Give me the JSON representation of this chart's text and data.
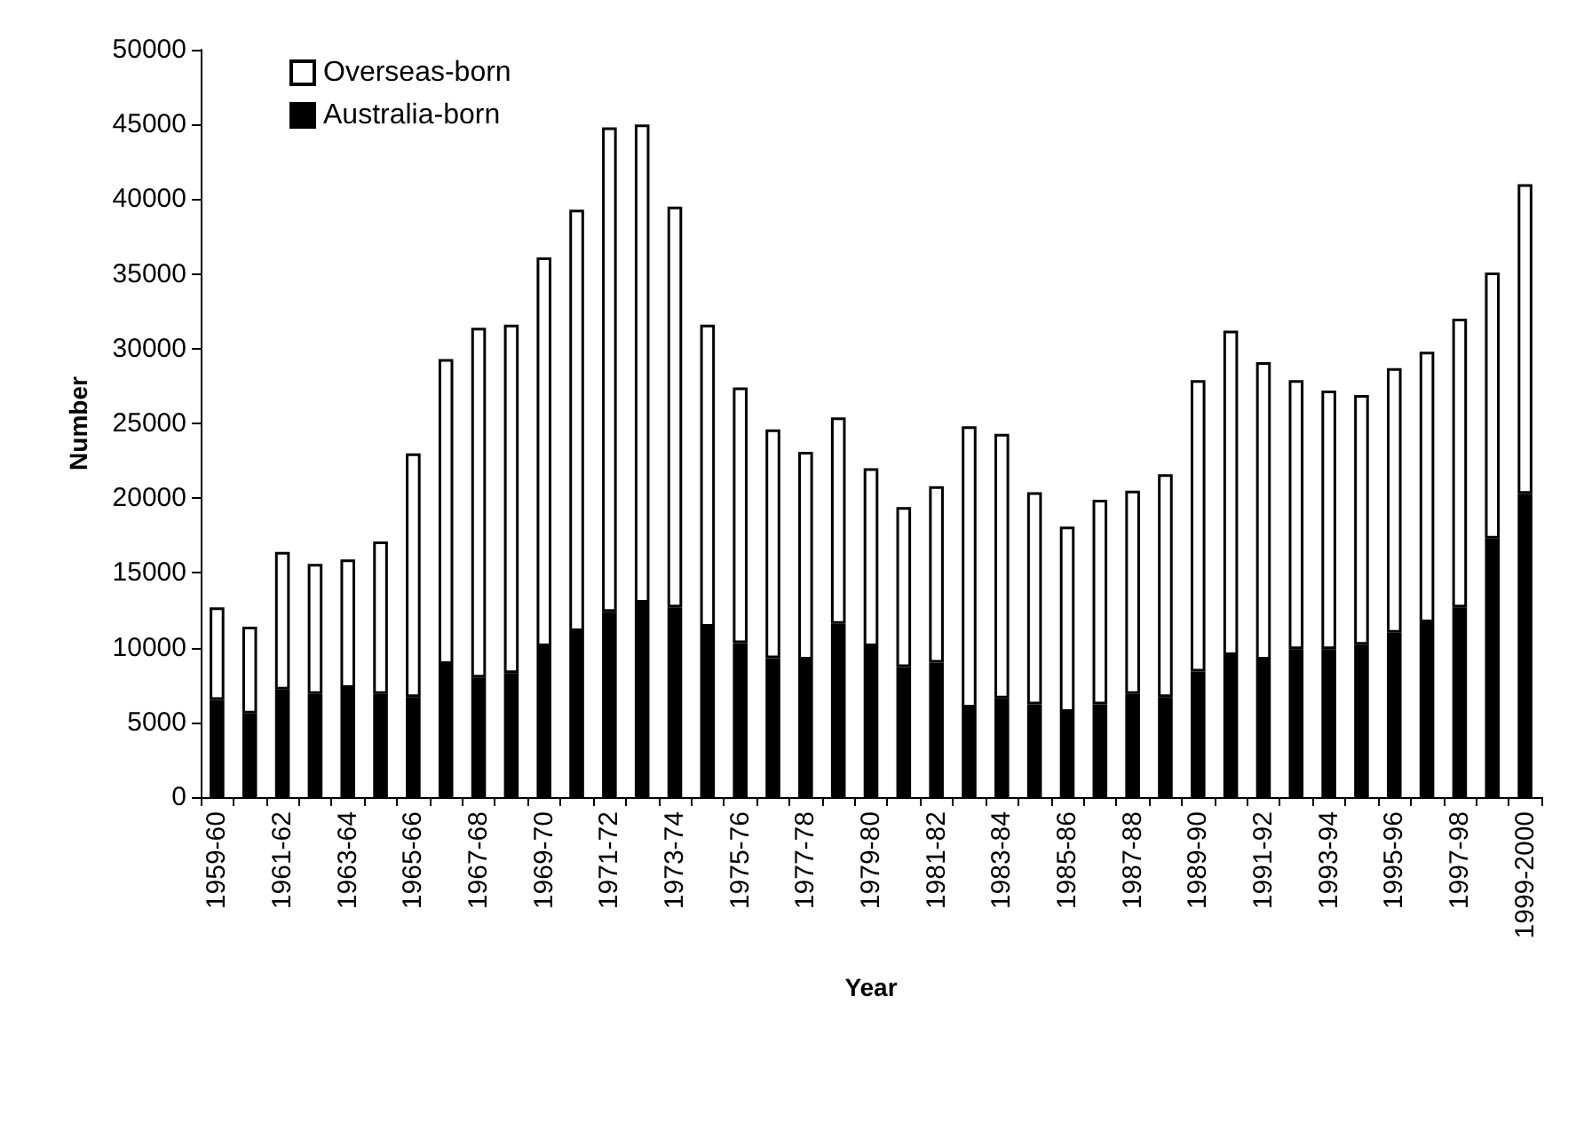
{
  "chart_data": {
    "type": "bar",
    "stacked": true,
    "xlabel": "Year",
    "ylabel": "Number",
    "categories": [
      "1959-60",
      null,
      "1961-62",
      null,
      "1963-64",
      null,
      "1965-66",
      null,
      "1967-68",
      null,
      "1969-70",
      null,
      "1971-72",
      null,
      "1973-74",
      null,
      "1975-76",
      null,
      "1977-78",
      null,
      "1979-80",
      null,
      "1981-82",
      null,
      "1983-84",
      null,
      "1985-86",
      null,
      "1987-88",
      null,
      "1989-90",
      null,
      "1991-92",
      null,
      "1993-94",
      null,
      "1995-96",
      null,
      "1997-98",
      null,
      "1999-2000"
    ],
    "series": [
      {
        "name": "Australia-born",
        "color": "#000000",
        "values": [
          6500,
          5600,
          7200,
          6900,
          7300,
          6900,
          6700,
          8900,
          8000,
          8300,
          10100,
          11100,
          12400,
          13000,
          12700,
          11400,
          10300,
          9300,
          9200,
          11600,
          10100,
          8700,
          9000,
          6000,
          6600,
          6200,
          5700,
          6200,
          6900,
          6700,
          8400,
          9500,
          9200,
          9900,
          9900,
          10200,
          11000,
          11700,
          12700,
          17300,
          20300
        ]
      },
      {
        "name": "Overseas-born",
        "color": "#ffffff",
        "values": [
          6200,
          5800,
          9200,
          8700,
          8600,
          10200,
          16300,
          20400,
          23400,
          23300,
          26000,
          28200,
          32400,
          32000,
          26800,
          20200,
          17100,
          15300,
          13900,
          13800,
          11900,
          10700,
          11800,
          18800,
          17700,
          14200,
          12400,
          13700,
          13600,
          14900,
          19500,
          21700,
          19900,
          18000,
          17300,
          16700,
          17700,
          18100,
          19300,
          17800,
          20700
        ]
      }
    ],
    "ylim": [
      0,
      50000
    ],
    "yticks": [
      0,
      5000,
      10000,
      15000,
      20000,
      25000,
      30000,
      35000,
      40000,
      45000,
      50000
    ],
    "grid": false,
    "legend": "top left"
  }
}
